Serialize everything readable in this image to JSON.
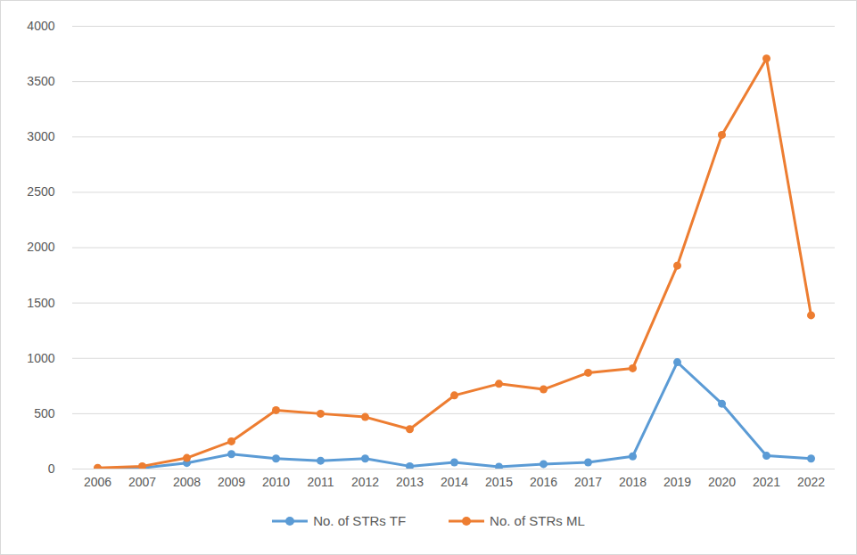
{
  "chart_data": {
    "type": "line",
    "categories": [
      "2006",
      "2007",
      "2008",
      "2009",
      "2010",
      "2011",
      "2012",
      "2013",
      "2014",
      "2015",
      "2016",
      "2017",
      "2018",
      "2019",
      "2020",
      "2021",
      "2022"
    ],
    "series": [
      {
        "name": "No. of STRs TF",
        "color": "#5b9bd5",
        "marker": "circle",
        "values": [
          5,
          10,
          55,
          135,
          95,
          75,
          95,
          25,
          60,
          20,
          45,
          60,
          115,
          965,
          590,
          120,
          95
        ]
      },
      {
        "name": "No. of STRs ML",
        "color": "#ed7d31",
        "marker": "circle",
        "values": [
          10,
          25,
          100,
          250,
          532,
          500,
          470,
          360,
          665,
          770,
          720,
          870,
          910,
          1838,
          3019,
          3709,
          1389
        ]
      }
    ],
    "ylim": [
      0,
      4000
    ],
    "yticks": [
      0,
      500,
      1000,
      1500,
      2000,
      2500,
      3000,
      3500,
      4000
    ],
    "grid": true,
    "legend": "bottom"
  }
}
